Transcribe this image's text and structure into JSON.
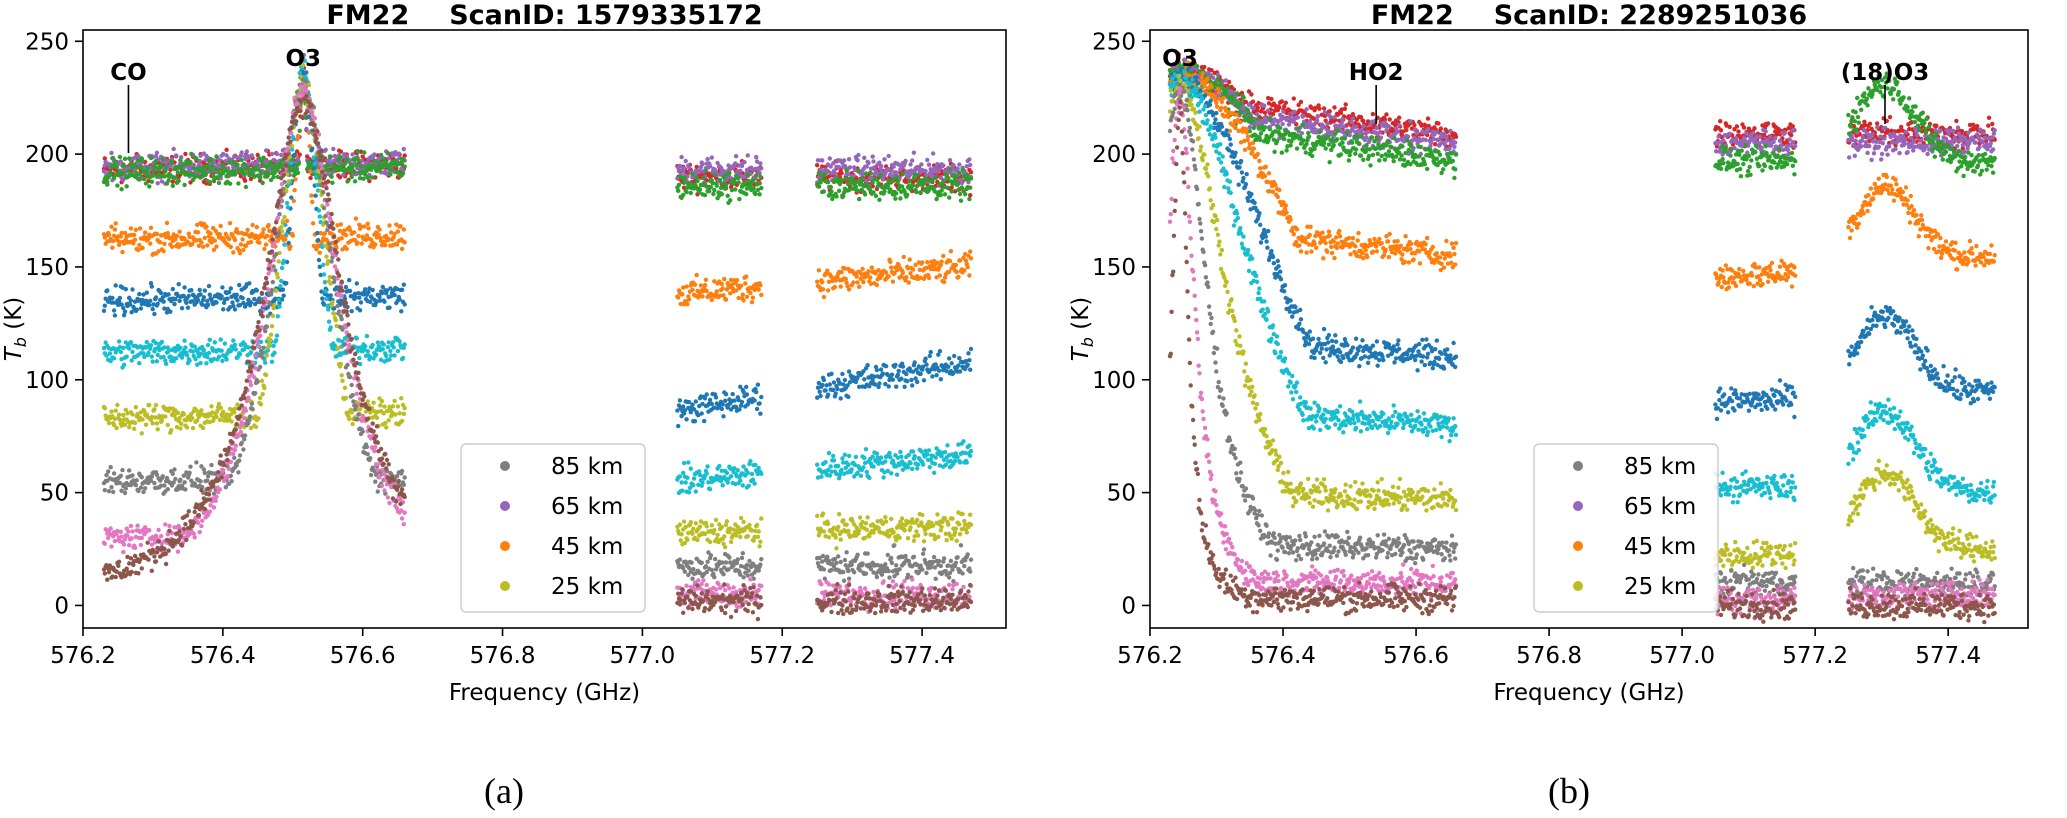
{
  "captions": [
    "(a)",
    "(b)"
  ],
  "colors": {
    "85 km": "#7f7f7f",
    "65 km": "#9467bd",
    "45 km": "#ff7f0e",
    "25 km": "#bcbd22",
    "other_series": [
      "#1f77b4",
      "#17becf",
      "#e377c2",
      "#8c564b",
      "#d62728",
      "#2ca02c"
    ]
  },
  "chart_data": [
    {
      "type": "scatter",
      "title_parts": [
        "FM22",
        "ScanID: 1579335172"
      ],
      "xlabel": "Frequency (GHz)",
      "ylabel": "T_b (K)",
      "xlim": [
        576.2,
        577.52
      ],
      "ylim": [
        -10,
        255
      ],
      "xticks": [
        "576.2",
        "576.4",
        "576.6",
        "576.8",
        "577.0",
        "577.2",
        "577.4"
      ],
      "yticks": [
        "0",
        "50",
        "100",
        "150",
        "200",
        "250"
      ],
      "grid": false,
      "legend": {
        "location": "lower-center",
        "entries": [
          "85 km",
          "65 km",
          "45 km",
          "25 km"
        ]
      },
      "annotations": [
        {
          "text": "CO",
          "x": 576.265,
          "y": 200
        },
        {
          "text": "O3",
          "x": 576.515,
          "y": 240
        }
      ],
      "frequency_bands": [
        [
          576.23,
          576.66
        ],
        [
          577.05,
          577.17
        ],
        [
          577.25,
          577.47
        ]
      ],
      "line_center": 576.515,
      "series_levels": [
        {
          "color": "#d62728",
          "base": 193,
          "peak": 240,
          "far": [
            190,
            189
          ]
        },
        {
          "color": "#9467bd",
          "base": 194,
          "peak": 240,
          "far": [
            193,
            193
          ]
        },
        {
          "color": "#2ca02c",
          "base": 192,
          "peak": 238,
          "far": [
            186,
            186
          ]
        },
        {
          "color": "#ff7f0e",
          "base": 162,
          "peak": 235,
          "far": [
            138,
            150
          ]
        },
        {
          "color": "#1f77b4",
          "base": 135,
          "peak": 235,
          "far": [
            86,
            108
          ]
        },
        {
          "color": "#17becf",
          "base": 112,
          "peak": 233,
          "far": [
            55,
            67
          ]
        },
        {
          "color": "#bcbd22",
          "base": 83,
          "peak": 230,
          "far": [
            32,
            35
          ]
        },
        {
          "color": "#7f7f7f",
          "base": 55,
          "peak": 228,
          "far": [
            17,
            18
          ]
        },
        {
          "color": "#e377c2",
          "base": 30,
          "peak": 225,
          "far": [
            5,
            5
          ]
        },
        {
          "color": "#8c564b",
          "base": 12,
          "peak": 220,
          "far": [
            2,
            2
          ]
        }
      ]
    },
    {
      "type": "scatter",
      "title_parts": [
        "FM22",
        "ScanID: 2289251036"
      ],
      "xlabel": "Frequency (GHz)",
      "ylabel": "T_b (K)",
      "xlim": [
        576.2,
        577.52
      ],
      "ylim": [
        -10,
        255
      ],
      "xticks": [
        "576.2",
        "576.4",
        "576.6",
        "576.8",
        "577.0",
        "577.2",
        "577.4"
      ],
      "yticks": [
        "0",
        "50",
        "100",
        "150",
        "200",
        "250"
      ],
      "grid": false,
      "legend": {
        "location": "lower-center",
        "entries": [
          "85 km",
          "65 km",
          "45 km",
          "25 km"
        ]
      },
      "annotations": [
        {
          "text": "O3",
          "x": 576.245,
          "y": 240
        },
        {
          "text": "HO2",
          "x": 576.54,
          "y": 215
        },
        {
          "text": "(18)O3",
          "x": 577.305,
          "y": 215
        }
      ],
      "frequency_bands": [
        [
          576.23,
          576.66
        ],
        [
          577.05,
          577.17
        ],
        [
          577.25,
          577.47
        ]
      ],
      "line_center": 576.245,
      "series_levels": [
        {
          "color": "#d62728",
          "peak": 237,
          "tail": 208,
          "far": [
            209,
            209
          ]
        },
        {
          "color": "#9467bd",
          "peak": 236,
          "tail": 204,
          "far": [
            205,
            205
          ]
        },
        {
          "color": "#2ca02c",
          "peak": 235,
          "tail": 197,
          "far": [
            197,
            196
          ]
        },
        {
          "color": "#ff7f0e",
          "peak": 234,
          "tail": 155,
          "far": [
            145,
            155
          ]
        },
        {
          "color": "#1f77b4",
          "peak": 233,
          "tail": 110,
          "far": [
            90,
            95
          ]
        },
        {
          "color": "#17becf",
          "peak": 232,
          "tail": 80,
          "far": [
            53,
            50
          ]
        },
        {
          "color": "#bcbd22",
          "peak": 230,
          "tail": 47,
          "far": [
            22,
            25
          ]
        },
        {
          "color": "#7f7f7f",
          "peak": 228,
          "tail": 25,
          "far": [
            10,
            10
          ]
        },
        {
          "color": "#e377c2",
          "peak": 225,
          "tail": 10,
          "far": [
            2,
            5
          ]
        },
        {
          "color": "#8c564b",
          "peak": 220,
          "tail": 3,
          "far": [
            0,
            0
          ]
        }
      ]
    }
  ]
}
